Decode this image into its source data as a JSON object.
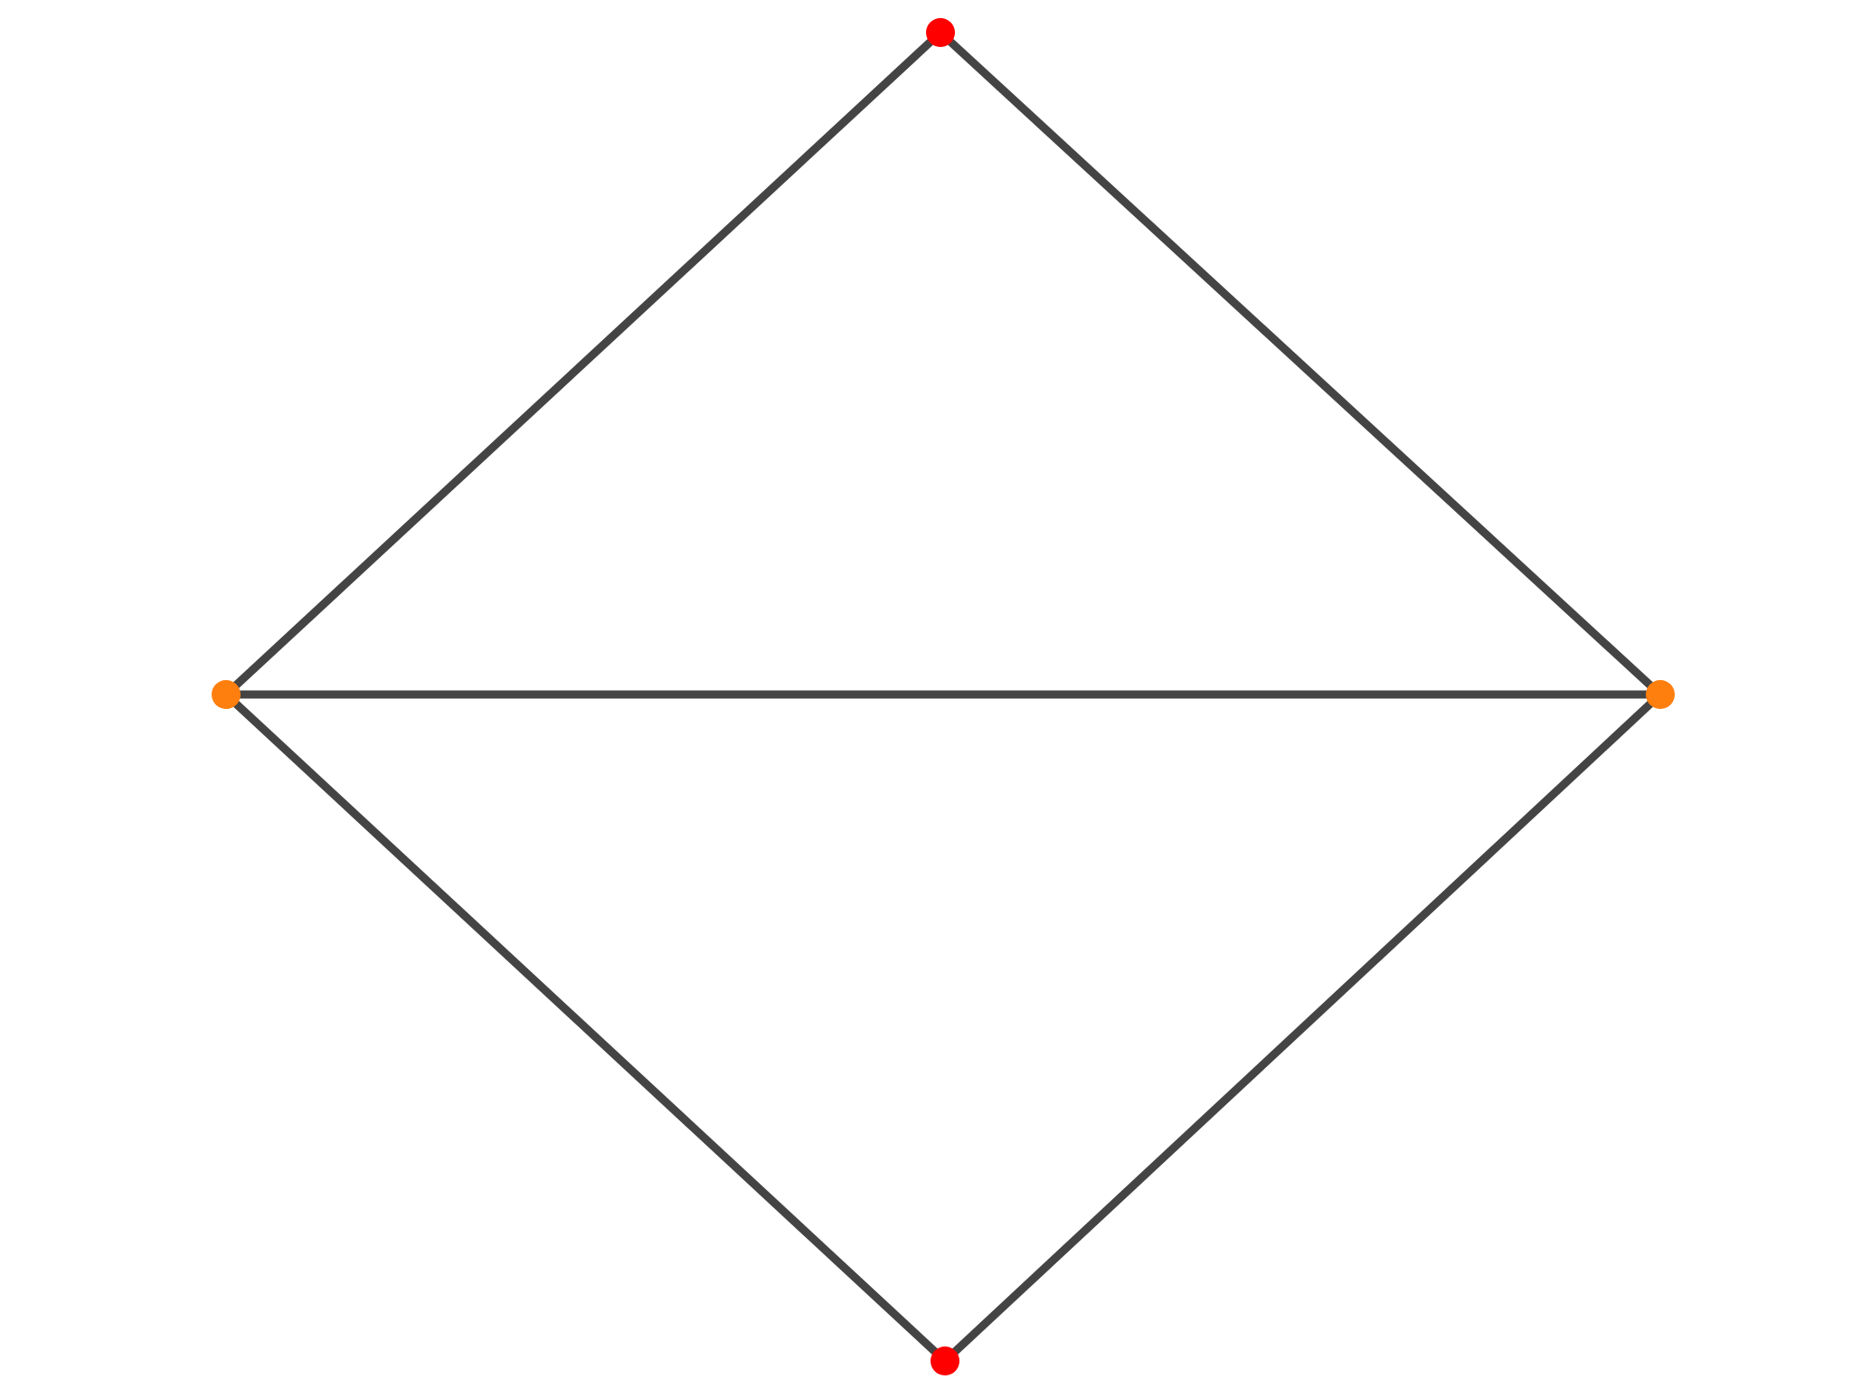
{
  "graph": {
    "background_color": "#ffffff",
    "edge_color": "#444444",
    "nodes": [
      {
        "id": "top",
        "color": "#ff0000",
        "shape": "dot"
      },
      {
        "id": "left",
        "color": "#ff7f0e",
        "shape": "dot"
      },
      {
        "id": "right",
        "color": "#ff7f0e",
        "shape": "dot"
      },
      {
        "id": "bottom",
        "color": "#ff0000",
        "shape": "dot"
      }
    ],
    "edges": [
      {
        "source": "top",
        "target": "left"
      },
      {
        "source": "top",
        "target": "right"
      },
      {
        "source": "left",
        "target": "right"
      },
      {
        "source": "left",
        "target": "bottom"
      },
      {
        "source": "right",
        "target": "bottom"
      }
    ]
  }
}
